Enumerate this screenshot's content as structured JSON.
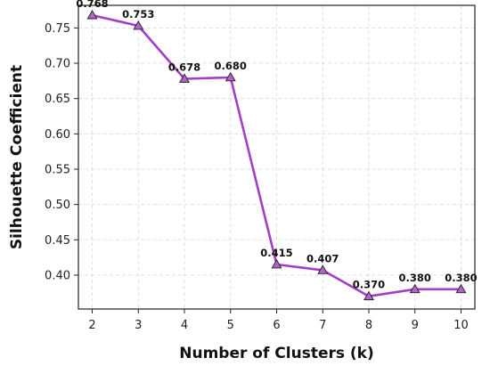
{
  "chart_data": {
    "type": "line",
    "title": "",
    "xlabel": "Number of Clusters (k)",
    "ylabel": "Silhouette Coefficient",
    "x": [
      2,
      3,
      4,
      5,
      6,
      7,
      8,
      9,
      10
    ],
    "series": [
      {
        "values": [
          0.768,
          0.753,
          0.678,
          0.68,
          0.415,
          0.407,
          0.37,
          0.38,
          0.38
        ],
        "labels": [
          "0.768",
          "0.753",
          "0.678",
          "0.680",
          "0.415",
          "0.407",
          "0.370",
          "0.380",
          "0.380"
        ],
        "color": "#a23fc4",
        "marker_fill": "#b364c9",
        "marker": "triangle"
      }
    ],
    "xticks": [
      "2",
      "3",
      "4",
      "5",
      "6",
      "7",
      "8",
      "9",
      "10"
    ],
    "yticks": [
      "0.40",
      "0.45",
      "0.50",
      "0.55",
      "0.60",
      "0.65",
      "0.70",
      "0.75"
    ],
    "xlim": [
      1.7,
      10.3
    ],
    "ylim": [
      0.352,
      0.782
    ],
    "grid": true,
    "legend": "none"
  }
}
